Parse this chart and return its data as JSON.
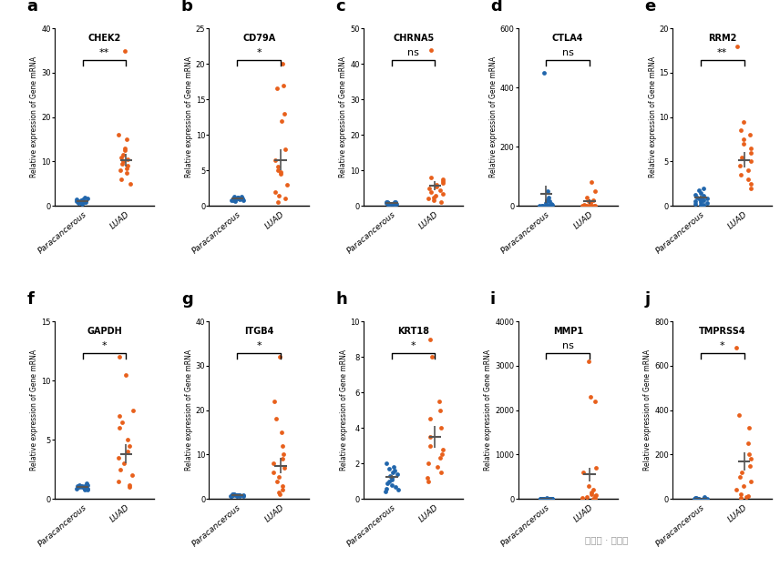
{
  "panels": [
    {
      "label": "a",
      "title": "CHEK2",
      "sig": "**",
      "ylim": [
        0,
        40
      ],
      "yticks": [
        0,
        10,
        20,
        30,
        40
      ],
      "blue": [
        1.2,
        0.8,
        1.5,
        1.0,
        0.9,
        1.1,
        0.7,
        1.3,
        0.6,
        1.4,
        0.5,
        1.8,
        0.8,
        1.6,
        1.0,
        0.9
      ],
      "orange": [
        35.0,
        16.0,
        15.0,
        13.0,
        12.5,
        11.5,
        11.0,
        10.5,
        10.0,
        9.5,
        9.0,
        8.5,
        8.0,
        7.5,
        6.0,
        5.0
      ],
      "blue_mean": 1.05,
      "blue_sem": 0.15,
      "orange_mean": 10.3,
      "orange_sem": 1.5
    },
    {
      "label": "b",
      "title": "CD79A",
      "sig": "*",
      "ylim": [
        0,
        25
      ],
      "yticks": [
        0,
        5,
        10,
        15,
        20,
        25
      ],
      "blue": [
        1.0,
        1.2,
        0.8,
        1.1,
        0.9,
        1.3,
        0.7,
        1.0,
        1.1,
        0.8,
        1.2,
        0.9,
        1.0,
        1.1,
        0.8,
        1.3
      ],
      "orange": [
        20.0,
        17.0,
        16.5,
        13.0,
        12.0,
        8.0,
        6.5,
        5.5,
        5.0,
        4.8,
        4.5,
        3.0,
        2.0,
        1.5,
        1.0,
        0.5
      ],
      "blue_mean": 1.0,
      "blue_sem": 0.1,
      "orange_mean": 6.5,
      "orange_sem": 1.5
    },
    {
      "label": "c",
      "title": "CHRNA5",
      "sig": "ns",
      "ylim": [
        0,
        50
      ],
      "yticks": [
        0,
        10,
        20,
        30,
        40,
        50
      ],
      "blue": [
        0.8,
        1.0,
        0.5,
        1.2,
        0.7,
        0.9,
        0.6,
        1.1,
        0.4,
        0.8,
        0.7,
        0.9,
        0.5,
        0.8,
        1.0,
        0.6
      ],
      "orange": [
        44.0,
        8.0,
        7.5,
        7.0,
        6.5,
        6.0,
        5.5,
        5.0,
        4.5,
        4.0,
        3.5,
        3.0,
        2.5,
        2.0,
        1.5,
        1.0
      ],
      "blue_mean": 0.8,
      "blue_sem": 0.1,
      "orange_mean": 5.8,
      "orange_sem": 1.3
    },
    {
      "label": "d",
      "title": "CTLA4",
      "sig": "ns",
      "ylim": [
        0,
        600
      ],
      "yticks": [
        0,
        200,
        400,
        600
      ],
      "blue": [
        450.0,
        50.0,
        30.0,
        20.0,
        15.0,
        10.0,
        8.0,
        5.0,
        3.0,
        2.0,
        1.5,
        1.0,
        0.8,
        0.5,
        0.3,
        0.2
      ],
      "orange": [
        80.0,
        50.0,
        30.0,
        20.0,
        15.0,
        10.0,
        5.0,
        3.0,
        2.0,
        1.5,
        1.0,
        0.8,
        0.5,
        0.3,
        0.2,
        0.1
      ],
      "blue_mean": 40.0,
      "blue_sem": 30.0,
      "orange_mean": 15.0,
      "orange_sem": 8.0
    },
    {
      "label": "e",
      "title": "RRM2",
      "sig": "**",
      "ylim": [
        0,
        20
      ],
      "yticks": [
        0,
        5,
        10,
        15,
        20
      ],
      "blue": [
        2.0,
        1.8,
        1.5,
        1.3,
        1.2,
        1.0,
        0.9,
        0.8,
        0.7,
        0.6,
        0.5,
        0.4,
        0.3,
        0.2,
        0.15,
        0.1
      ],
      "orange": [
        18.0,
        9.5,
        8.5,
        8.0,
        7.5,
        7.0,
        6.5,
        6.0,
        5.5,
        5.0,
        4.5,
        4.0,
        3.5,
        3.0,
        2.5,
        2.0
      ],
      "blue_mean": 1.0,
      "blue_sem": 0.15,
      "orange_mean": 5.2,
      "orange_sem": 0.9
    },
    {
      "label": "f",
      "title": "GAPDH",
      "sig": "*",
      "ylim": [
        0,
        15
      ],
      "yticks": [
        0,
        5,
        10,
        15
      ],
      "blue": [
        1.2,
        1.0,
        1.1,
        0.9,
        1.3,
        0.8,
        1.0,
        1.1,
        0.9,
        1.2,
        1.0,
        0.8,
        1.1,
        0.9,
        1.0,
        1.1
      ],
      "orange": [
        12.0,
        10.5,
        7.5,
        7.0,
        6.5,
        6.0,
        5.0,
        4.5,
        4.0,
        3.5,
        3.0,
        2.5,
        2.0,
        1.5,
        1.2,
        1.0
      ],
      "blue_mean": 1.0,
      "blue_sem": 0.08,
      "orange_mean": 3.8,
      "orange_sem": 0.8
    },
    {
      "label": "g",
      "title": "ITGB4",
      "sig": "*",
      "ylim": [
        0,
        40
      ],
      "yticks": [
        0,
        10,
        20,
        30,
        40
      ],
      "blue": [
        1.0,
        0.8,
        0.9,
        0.7,
        1.1,
        0.6,
        0.8,
        0.9,
        0.7,
        1.0,
        0.8,
        0.6,
        0.9,
        0.7,
        0.8,
        0.9
      ],
      "orange": [
        32.0,
        22.0,
        18.0,
        15.0,
        12.0,
        10.0,
        9.0,
        8.0,
        7.0,
        6.0,
        5.0,
        4.0,
        3.0,
        2.0,
        1.5,
        1.0
      ],
      "blue_mean": 0.8,
      "blue_sem": 0.07,
      "orange_mean": 7.5,
      "orange_sem": 1.8
    },
    {
      "label": "h",
      "title": "KRT18",
      "sig": "*",
      "ylim": [
        0,
        10
      ],
      "yticks": [
        0,
        2,
        4,
        6,
        8,
        10
      ],
      "blue": [
        2.0,
        1.8,
        1.7,
        1.6,
        1.5,
        1.4,
        1.3,
        1.2,
        1.1,
        1.0,
        0.9,
        0.8,
        0.7,
        0.6,
        0.5,
        0.4
      ],
      "orange": [
        9.0,
        8.0,
        5.5,
        5.0,
        4.5,
        4.0,
        3.5,
        3.0,
        2.8,
        2.5,
        2.3,
        2.0,
        1.8,
        1.5,
        1.2,
        1.0
      ],
      "blue_mean": 1.25,
      "blue_sem": 0.12,
      "orange_mean": 3.5,
      "orange_sem": 0.6
    },
    {
      "label": "i",
      "title": "MMP1",
      "sig": "ns",
      "ylim": [
        0,
        4000
      ],
      "yticks": [
        0,
        1000,
        2000,
        3000,
        4000
      ],
      "blue": [
        20.0,
        15.0,
        12.0,
        10.0,
        8.0,
        6.0,
        5.0,
        4.0,
        3.0,
        2.5,
        2.0,
        1.5,
        1.0,
        0.8,
        0.5,
        0.3
      ],
      "orange": [
        3100.0,
        2300.0,
        2200.0,
        700.0,
        600.0,
        300.0,
        200.0,
        150.0,
        100.0,
        80.0,
        60.0,
        40.0,
        20.0,
        10.0,
        5.0,
        2.0
      ],
      "blue_mean": 8.0,
      "blue_sem": 2.0,
      "orange_mean": 550.0,
      "orange_sem": 160.0
    },
    {
      "label": "j",
      "title": "TMPRSS4",
      "sig": "*",
      "ylim": [
        0,
        800
      ],
      "yticks": [
        0,
        200,
        400,
        600,
        800
      ],
      "blue": [
        8.0,
        5.0,
        4.0,
        3.0,
        2.5,
        2.0,
        1.5,
        1.2,
        1.0,
        0.8,
        0.6,
        0.5,
        0.4,
        0.3,
        0.2,
        0.1
      ],
      "orange": [
        680.0,
        380.0,
        320.0,
        250.0,
        200.0,
        180.0,
        150.0,
        120.0,
        100.0,
        80.0,
        60.0,
        40.0,
        20.0,
        15.0,
        10.0,
        5.0
      ],
      "blue_mean": 3.0,
      "blue_sem": 0.8,
      "orange_mean": 170.0,
      "orange_sem": 40.0
    }
  ],
  "blue_color": "#2166ac",
  "orange_color": "#e8601c",
  "ylabel": "Relative expression of Gene mRNA",
  "xlabel_blue": "Paracancerous",
  "xlabel_orange": "LUAD",
  "background_color": "#ffffff",
  "watermark": "公众号 · 呼吸坊"
}
